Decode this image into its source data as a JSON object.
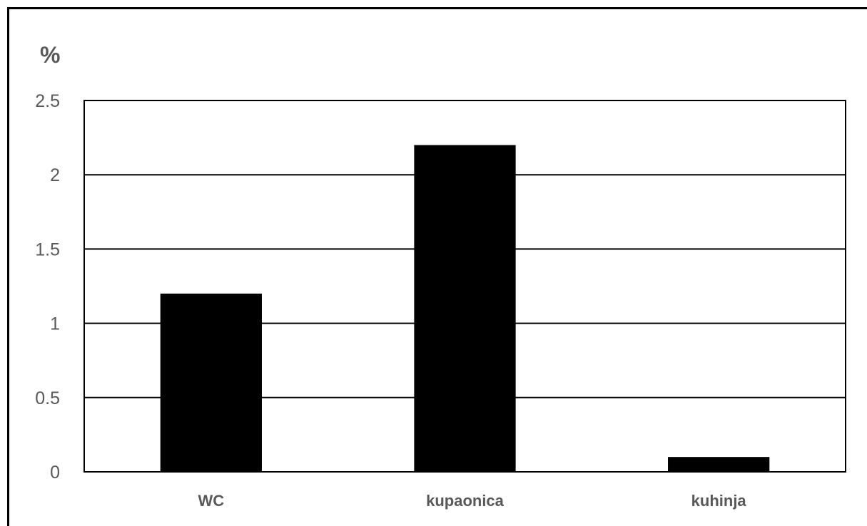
{
  "chart_data": {
    "type": "bar",
    "title": "",
    "xlabel": "",
    "ylabel": "%",
    "categories": [
      "WC",
      "kupaonica",
      "kuhinja"
    ],
    "values": [
      1.2,
      2.2,
      0.1
    ],
    "ylim": [
      0,
      2.5
    ],
    "yticks": [
      "0",
      "0.5",
      "1",
      "1.5",
      "2",
      "2.5"
    ],
    "grid": true,
    "legend": "none",
    "bar_color": "#000000",
    "grid_color": "#000000"
  }
}
